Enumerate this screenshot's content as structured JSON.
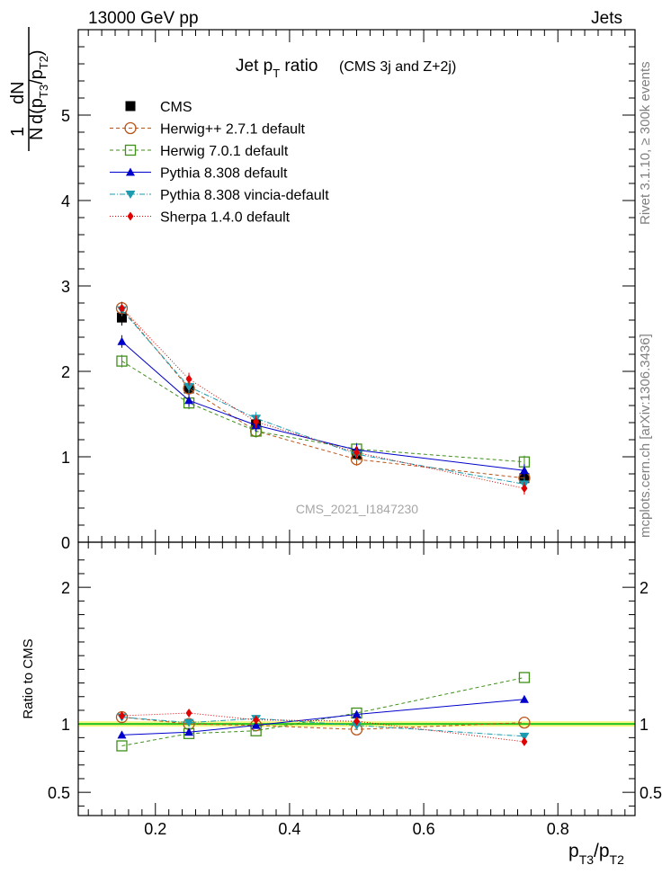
{
  "header": {
    "left": "13000 GeV pp",
    "right": "Jets"
  },
  "side_labels": {
    "rivet": "Rivet 3.1.10, ≥ 300k events",
    "mcplots": "mcplots.cern.ch [arXiv:1306.3436]"
  },
  "watermark": "CMS_2021_I1847230",
  "chart_data": {
    "type": "line",
    "title": {
      "main": "Jet p",
      "sub": "T",
      "rest": " ratio",
      "note": "(CMS 3j and Z+2j)"
    },
    "ylabel": {
      "one": "1",
      "N": "N",
      "dN": "dN",
      "d": "d(p",
      "s1": "T3",
      "slash": "/p",
      "s2": "T2",
      "close": ")"
    },
    "xlabel": {
      "p1": "p",
      "s1": "T3",
      "slash": "/p",
      "s2": "T2"
    },
    "ratio_ylabel": "Ratio to CMS",
    "xlim": [
      0.085,
      0.915
    ],
    "ylim_main": [
      0,
      6.0
    ],
    "ylim_ratio": [
      0.33,
      2.33
    ],
    "x": [
      0.15,
      0.25,
      0.35,
      0.5,
      0.75
    ],
    "x_ticks": [
      "0.2",
      "0.4",
      "0.6",
      "0.8"
    ],
    "x_tick_values": [
      0.2,
      0.4,
      0.6,
      0.8
    ],
    "y_ticks_main": [
      "0",
      "1",
      "2",
      "3",
      "4",
      "5"
    ],
    "y_tick_values_main": [
      0,
      1,
      2,
      3,
      4,
      5
    ],
    "y_ticks_ratio": [
      "0.5",
      "1",
      "2"
    ],
    "y_tick_values_ratio": [
      0.5,
      1,
      2
    ],
    "series": [
      {
        "name": "CMS",
        "color": "#000000",
        "marker": "square-filled",
        "dash": "",
        "values": [
          2.63,
          1.8,
          1.38,
          1.03,
          0.75
        ],
        "ratio": [
          1.0,
          1.0,
          1.0,
          1.0,
          1.0
        ]
      },
      {
        "name": "Herwig++ 2.7.1 default",
        "color": "#b8541a",
        "marker": "circle-open",
        "dash": "4,3",
        "values": [
          2.74,
          1.8,
          1.3,
          0.97,
          0.75
        ],
        "ratio": [
          1.05,
          1.0,
          0.99,
          0.96,
          1.01
        ]
      },
      {
        "name": "Herwig 7.0.1 default",
        "color": "#3f8f1a",
        "marker": "square-open",
        "dash": "4,3",
        "values": [
          2.12,
          1.63,
          1.3,
          1.09,
          0.94
        ],
        "ratio": [
          0.84,
          0.93,
          0.95,
          1.08,
          1.34
        ]
      },
      {
        "name": "Pythia 8.308 default",
        "color": "#0000cc",
        "marker": "triangle-up",
        "dash": "",
        "values": [
          2.35,
          1.66,
          1.37,
          1.08,
          0.84
        ],
        "ratio": [
          0.92,
          0.94,
          0.99,
          1.07,
          1.18
        ]
      },
      {
        "name": "Pythia 8.308 vincia-default",
        "color": "#1a9bb0",
        "marker": "triangle-down",
        "dash": "6,2,1,2",
        "values": [
          2.72,
          1.82,
          1.45,
          1.03,
          0.68
        ],
        "ratio": [
          1.05,
          1.01,
          1.04,
          0.99,
          0.91
        ]
      },
      {
        "name": "Sherpa 1.4.0 default",
        "color": "#e00000",
        "marker": "diamond",
        "dash": "1,2",
        "values": [
          2.74,
          1.91,
          1.41,
          1.05,
          0.63
        ],
        "ratio": [
          1.06,
          1.08,
          1.03,
          1.02,
          0.87
        ]
      }
    ]
  }
}
